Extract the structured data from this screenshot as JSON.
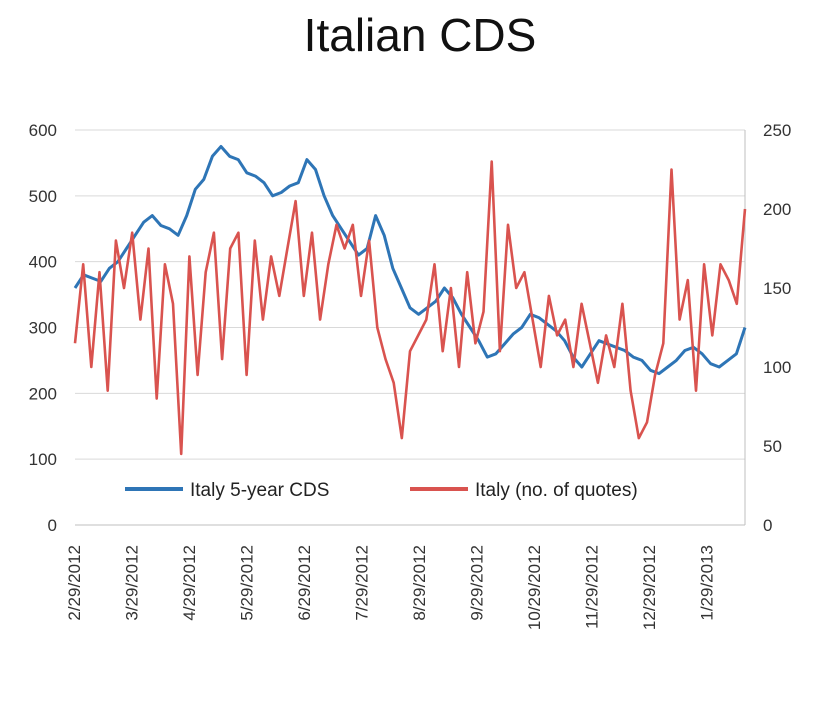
{
  "chart_data": {
    "type": "line",
    "title": "Italian CDS",
    "left_axis": {
      "ylim": [
        0,
        600
      ],
      "ticks": [
        "0",
        "100",
        "200",
        "300",
        "400",
        "500",
        "600"
      ]
    },
    "right_axis": {
      "ylim": [
        0,
        250
      ],
      "ticks": [
        "0",
        "50",
        "100",
        "150",
        "200",
        "250"
      ]
    },
    "x_ticks": [
      "2/29/2012",
      "3/29/2012",
      "4/29/2012",
      "5/29/2012",
      "6/29/2012",
      "7/29/2012",
      "8/29/2012",
      "9/29/2012",
      "10/29/2012",
      "11/29/2012",
      "12/29/2012",
      "1/29/2013"
    ],
    "grid": "horizontal",
    "legend": "inside-bottom",
    "series": [
      {
        "name": "Italy 5-year CDS",
        "axis": "left",
        "color": "#2e75b6",
        "values": [
          360,
          380,
          375,
          370,
          390,
          400,
          420,
          440,
          460,
          470,
          455,
          450,
          440,
          470,
          510,
          525,
          560,
          575,
          560,
          555,
          535,
          530,
          520,
          500,
          505,
          515,
          520,
          555,
          540,
          500,
          470,
          450,
          430,
          410,
          420,
          470,
          440,
          390,
          360,
          330,
          320,
          330,
          340,
          360,
          345,
          320,
          300,
          280,
          255,
          260,
          275,
          290,
          300,
          320,
          315,
          305,
          295,
          280,
          255,
          240,
          260,
          280,
          275,
          270,
          265,
          255,
          250,
          235,
          230,
          240,
          250,
          265,
          270,
          260,
          245,
          240,
          250,
          260,
          300
        ]
      },
      {
        "name": "Italy (no. of quotes)",
        "axis": "right",
        "color": "#d9534f",
        "values": [
          115,
          165,
          100,
          160,
          85,
          180,
          150,
          185,
          130,
          175,
          80,
          165,
          140,
          45,
          170,
          95,
          160,
          185,
          105,
          175,
          185,
          95,
          180,
          130,
          170,
          145,
          175,
          205,
          145,
          185,
          130,
          165,
          190,
          175,
          190,
          145,
          180,
          125,
          105,
          90,
          55,
          110,
          120,
          130,
          165,
          110,
          150,
          100,
          160,
          115,
          135,
          230,
          110,
          190,
          150,
          160,
          130,
          100,
          145,
          120,
          130,
          100,
          140,
          115,
          90,
          120,
          100,
          140,
          85,
          55,
          65,
          95,
          115,
          225,
          130,
          155,
          85,
          165,
          120,
          165,
          155,
          140,
          200
        ]
      }
    ]
  }
}
